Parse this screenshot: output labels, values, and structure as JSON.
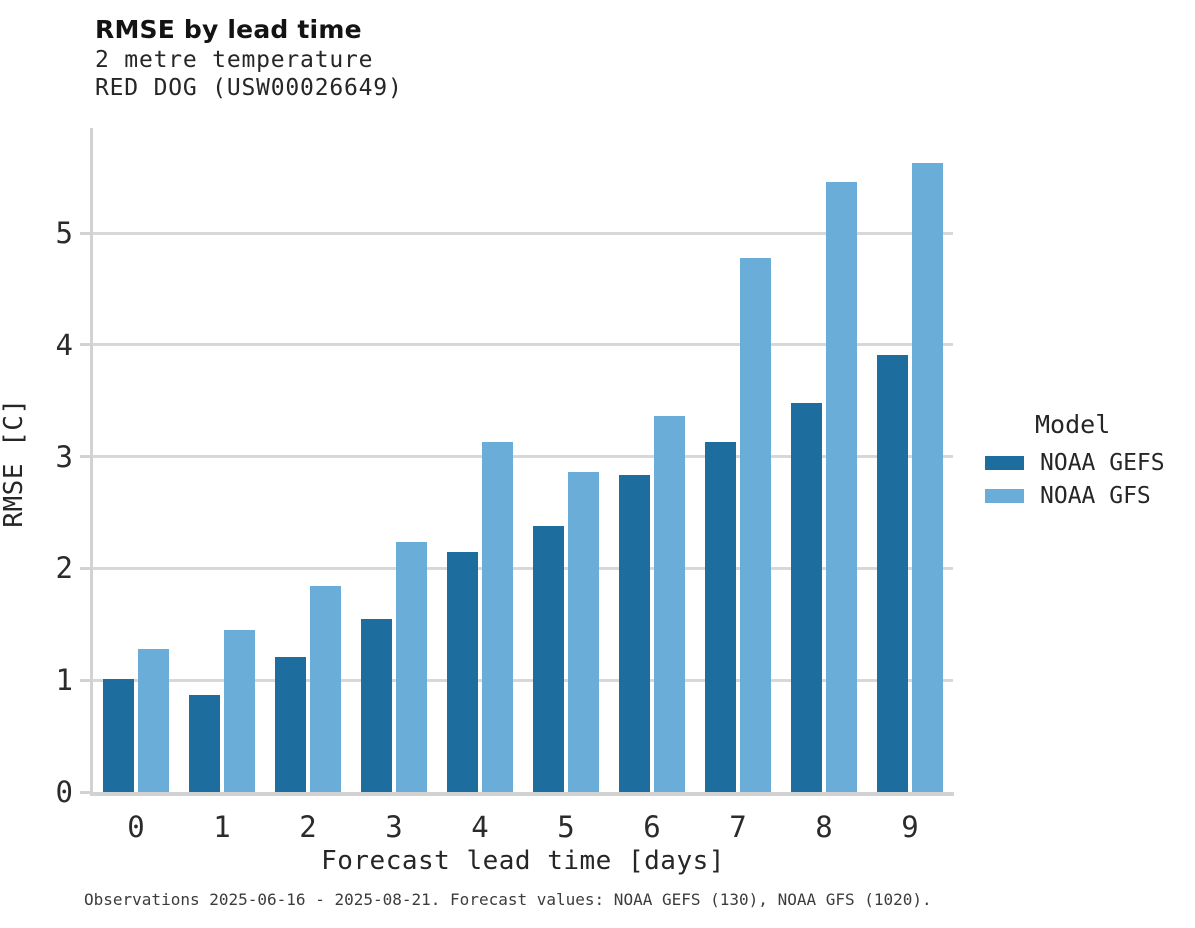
{
  "header": {
    "title": "RMSE by lead time",
    "subtitle_line1": "2 metre temperature",
    "subtitle_line2": "RED DOG (USW00026649)"
  },
  "chart_data": {
    "type": "bar",
    "title": "RMSE by lead time",
    "subtitle": [
      "2 metre temperature",
      "RED DOG (USW00026649)"
    ],
    "categories": [
      "0",
      "1",
      "2",
      "3",
      "4",
      "5",
      "6",
      "7",
      "8",
      "9"
    ],
    "series": [
      {
        "name": "NOAA GEFS",
        "color": "#1d6d9e",
        "values": [
          1.01,
          0.87,
          1.21,
          1.55,
          2.15,
          2.38,
          2.84,
          3.13,
          3.48,
          3.91
        ]
      },
      {
        "name": "NOAA GFS",
        "color": "#6badd9",
        "values": [
          1.28,
          1.45,
          1.84,
          2.24,
          3.13,
          2.86,
          3.36,
          4.78,
          5.46,
          5.63
        ]
      }
    ],
    "xlabel": "Forecast lead time [days]",
    "ylabel": "RMSE [C]",
    "ylim": [
      0,
      5.94
    ],
    "yticks": [
      0,
      1,
      2,
      3,
      4,
      5
    ],
    "grid": "horizontal",
    "legend_title": "Model",
    "legend_position": "right-center"
  },
  "legend": {
    "title": "Model",
    "items": [
      {
        "label": "NOAA GEFS",
        "color": "#1d6d9e"
      },
      {
        "label": "NOAA GFS",
        "color": "#6badd9"
      }
    ]
  },
  "footer": {
    "note": "Observations 2025-06-16 - 2025-08-21. Forecast values: NOAA GEFS (130), NOAA GFS (1020)."
  },
  "colors": {
    "series_dark": "#1d6d9e",
    "series_light": "#6badd9",
    "grid": "#d8d8d8",
    "spine": "#d2d2d2",
    "text": "#262626",
    "background": "#ffffff"
  }
}
